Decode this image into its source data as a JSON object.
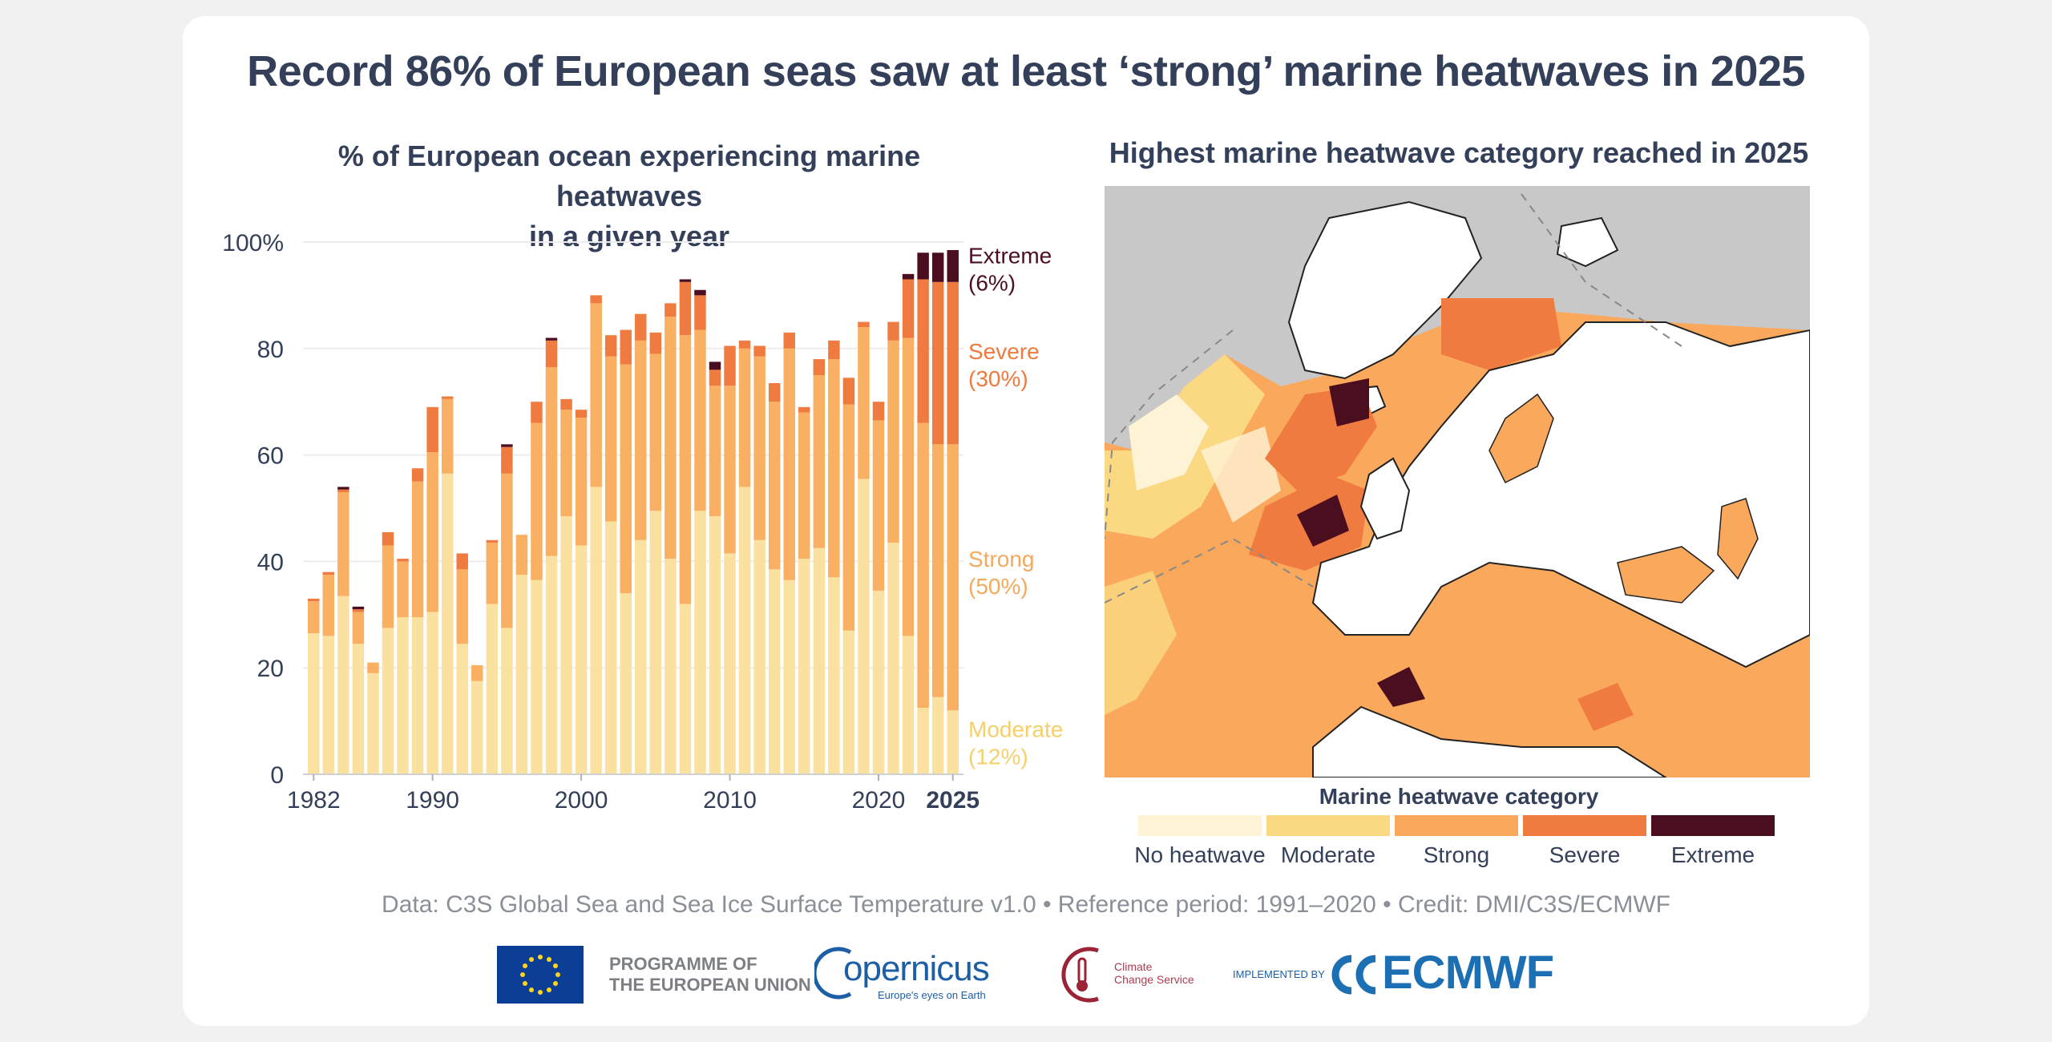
{
  "title": "Record 86% of European seas saw at least ‘strong’ marine heatwaves in 2025",
  "left_title_line1": "% of European ocean experiencing marine heatwaves",
  "left_title_line2": "in a given year",
  "right_title": "Highest marine heatwave category reached in 2025",
  "chart_data": {
    "type": "bar",
    "stacked": true,
    "title": "% of European ocean experiencing marine heatwaves in a given year",
    "xlabel": "",
    "ylabel": "",
    "ylim": [
      0,
      100
    ],
    "y_ticks": [
      "0",
      "20",
      "40",
      "60",
      "80",
      "100%"
    ],
    "y_tick_values": [
      0,
      20,
      40,
      60,
      80,
      100
    ],
    "x_ticks": [
      "1982",
      "1990",
      "2000",
      "2010",
      "2020",
      "2025"
    ],
    "x_tick_years": [
      1982,
      1990,
      2000,
      2010,
      2020,
      2025
    ],
    "grid": true,
    "categories": [
      1982,
      1983,
      1984,
      1985,
      1986,
      1987,
      1988,
      1989,
      1990,
      1991,
      1992,
      1993,
      1994,
      1995,
      1996,
      1997,
      1998,
      1999,
      2000,
      2001,
      2002,
      2003,
      2004,
      2005,
      2006,
      2007,
      2008,
      2009,
      2010,
      2011,
      2012,
      2013,
      2014,
      2015,
      2016,
      2017,
      2018,
      2019,
      2020,
      2021,
      2022,
      2023,
      2024,
      2025
    ],
    "series": [
      {
        "name": "Moderate",
        "color": "#fbe1a0",
        "values": [
          26.5,
          26.0,
          33.5,
          24.5,
          19.0,
          27.5,
          29.5,
          29.5,
          30.5,
          56.5,
          24.5,
          17.5,
          32.0,
          27.5,
          37.5,
          36.5,
          41.0,
          48.5,
          43.0,
          54.0,
          47.5,
          34.0,
          44.0,
          49.5,
          40.5,
          32.0,
          49.5,
          48.5,
          41.5,
          54.0,
          44.0,
          38.5,
          36.5,
          40.5,
          42.5,
          37.0,
          27.0,
          55.5,
          34.5,
          43.5,
          26.0,
          12.5,
          14.5,
          12.0
        ]
      },
      {
        "name": "Strong",
        "color": "#f9b062",
        "values": [
          6.0,
          11.5,
          19.5,
          6.0,
          2.0,
          15.5,
          10.5,
          25.5,
          30.0,
          14.0,
          14.0,
          3.0,
          11.5,
          29.0,
          7.5,
          29.5,
          35.5,
          20.0,
          24.0,
          34.5,
          31.0,
          43.0,
          37.5,
          29.5,
          45.5,
          50.5,
          34.0,
          24.5,
          31.5,
          26.0,
          34.5,
          31.5,
          43.5,
          27.5,
          32.5,
          41.0,
          42.5,
          28.5,
          32.0,
          38.0,
          56.0,
          53.5,
          47.5,
          50.0
        ]
      },
      {
        "name": "Severe",
        "color": "#f07b40",
        "values": [
          0.5,
          0.5,
          0.5,
          0.5,
          0,
          2.5,
          0.5,
          2.5,
          8.5,
          0.5,
          3.0,
          0,
          0.5,
          5.0,
          0,
          4.0,
          5.0,
          2.0,
          1.5,
          1.5,
          4.0,
          6.5,
          5.0,
          4.0,
          2.5,
          10.0,
          6.5,
          3.0,
          7.5,
          1.5,
          2.0,
          3.5,
          3.0,
          1.0,
          3.0,
          3.5,
          5.0,
          1.0,
          3.5,
          3.5,
          11.0,
          27.0,
          30.5,
          30.5
        ]
      },
      {
        "name": "Extreme",
        "color": "#4a0e1e",
        "values": [
          0,
          0,
          0.5,
          0.5,
          0,
          0,
          0,
          0,
          0,
          0,
          0,
          0,
          0,
          0.5,
          0,
          0,
          0.5,
          0,
          0,
          0,
          0,
          0,
          0,
          0,
          0,
          0.5,
          1.0,
          1.5,
          0,
          0,
          0,
          0,
          0,
          0,
          0,
          0,
          0,
          0,
          0,
          0,
          1.0,
          5.0,
          5.5,
          6.0
        ]
      }
    ],
    "series_labels": [
      {
        "name": "Extreme",
        "pct": "(6%)",
        "color": "#4a0e1e",
        "y": 96
      },
      {
        "name": "Severe",
        "pct": "(30%)",
        "color": "#ee7a40",
        "y": 78
      },
      {
        "name": "Strong",
        "pct": "(50%)",
        "color": "#f4aa5e",
        "y": 39
      },
      {
        "name": "Moderate",
        "pct": "(12%)",
        "color": "#f5cf6a",
        "y": 7
      }
    ]
  },
  "map": {
    "legend_title": "Marine heatwave category",
    "categories": [
      {
        "label": "No heatwave",
        "color": "#fff3d6"
      },
      {
        "label": "Moderate",
        "color": "#fbd983"
      },
      {
        "label": "Strong",
        "color": "#f9a85c"
      },
      {
        "label": "Severe",
        "color": "#f07b40"
      },
      {
        "label": "Extreme",
        "color": "#4a0e1e"
      }
    ]
  },
  "credit": "Data: C3S Global Sea and Sea Ice Surface Temperature v1.0 • Reference period: 1991–2020 • Credit: DMI/C3S/ECMWF",
  "logos": {
    "eu_line1": "PROGRAMME OF",
    "eu_line2": "THE EUROPEAN UNION",
    "copernicus": "opernicus",
    "copernicus_sub": "Europe's eyes on Earth",
    "c3s_line1": "Climate",
    "c3s_line2": "Change Service",
    "implemented": "IMPLEMENTED BY",
    "ecmwf": "ECMWF"
  }
}
